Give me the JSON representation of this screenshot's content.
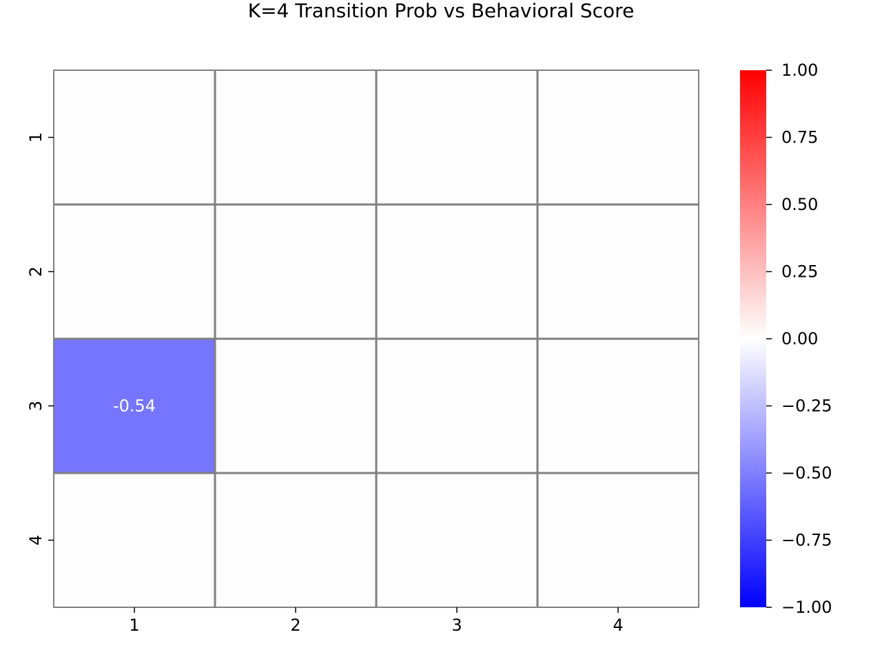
{
  "chart_data": {
    "type": "heatmap",
    "title": "K=4 Transition Prob vs Behavioral Score",
    "xlabel": "",
    "ylabel": "",
    "row_labels": [
      "1",
      "2",
      "3",
      "4"
    ],
    "col_labels": [
      "1",
      "2",
      "3",
      "4"
    ],
    "values": [
      [
        0,
        0,
        0,
        0
      ],
      [
        0,
        0,
        0,
        0
      ],
      [
        -0.54,
        0,
        0,
        0
      ],
      [
        0,
        0,
        0,
        0
      ]
    ],
    "annotations": [
      {
        "row": 3,
        "col": 1,
        "text": "-0.54"
      }
    ],
    "colorbar": {
      "range": [
        -1.0,
        1.0
      ],
      "ticks": [
        "1.00",
        "0.75",
        "0.50",
        "0.25",
        "0.00",
        "−0.25",
        "−0.50",
        "−0.75",
        "−1.00"
      ],
      "colors": {
        "low": "#0000ff",
        "mid": "#ffffff",
        "high": "#ff0000"
      }
    },
    "zero_cell_color": "#fdfdfd",
    "grid_line_color": "#808080",
    "annotation_text_color": "#ffffff"
  }
}
